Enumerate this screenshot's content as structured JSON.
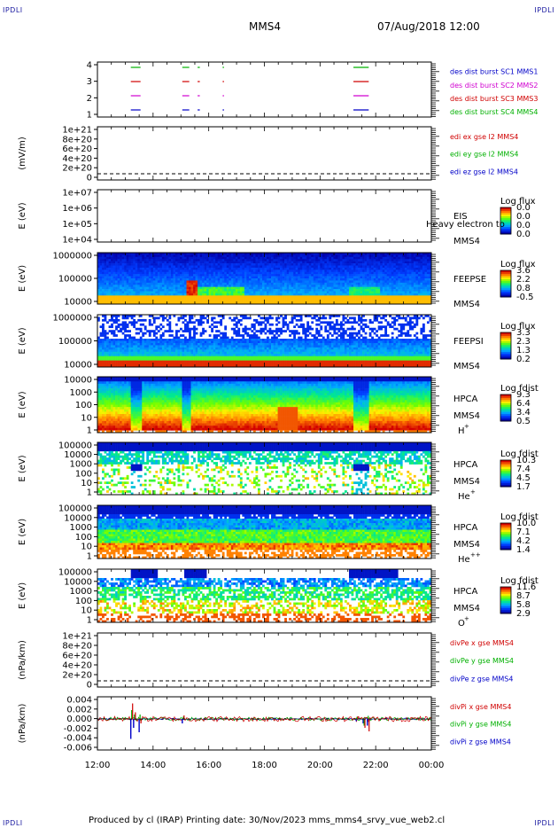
{
  "corner_text": "IPDLI",
  "header": {
    "spacecraft": "MMS4",
    "datetime": "07/Aug/2018 12:00"
  },
  "footer": {
    "text": "Produced by cl (IRAP)   Printing date: 30/Nov/2023   mms_mms4_srvy_vue_web2.cl"
  },
  "colors": {
    "blue": "#0000c8",
    "red": "#d00000",
    "green": "#00b000",
    "magenta": "#d000d0"
  },
  "chart_data": [
    {
      "type": "line",
      "panel": "burst",
      "yticks": [
        "4",
        "3",
        "2",
        "1"
      ],
      "legend": [
        {
          "text": "des dist burst SC1 MMS1",
          "color": "#0000c8"
        },
        {
          "text": "des dist burst SC2 MMS2",
          "color": "#d000d0"
        },
        {
          "text": "des dist burst SC3 MMS3",
          "color": "#d00000"
        },
        {
          "text": "des dist burst SC4 MMS4",
          "color": "#00b000"
        }
      ],
      "bursts": [
        {
          "level": 4,
          "color": "#00b000",
          "intervals": [
            [
              13.2,
              13.55
            ],
            [
              15.05,
              15.3
            ],
            [
              15.6,
              15.68
            ],
            [
              16.5,
              16.55
            ],
            [
              21.2,
              21.75
            ]
          ]
        },
        {
          "level": 3,
          "color": "#d00000",
          "intervals": [
            [
              13.2,
              13.55
            ],
            [
              15.05,
              15.3
            ],
            [
              15.6,
              15.68
            ],
            [
              16.5,
              16.55
            ],
            [
              21.2,
              21.75
            ]
          ]
        },
        {
          "level": 2,
          "color": "#d000d0",
          "intervals": [
            [
              13.2,
              13.55
            ],
            [
              15.05,
              15.3
            ],
            [
              15.6,
              15.68
            ],
            [
              16.5,
              16.55
            ],
            [
              21.2,
              21.75
            ]
          ]
        },
        {
          "level": 1,
          "color": "#0000c8",
          "intervals": [
            [
              13.2,
              13.55
            ],
            [
              15.05,
              15.3
            ],
            [
              15.6,
              15.68
            ],
            [
              16.5,
              16.55
            ],
            [
              21.2,
              21.75
            ]
          ]
        }
      ]
    },
    {
      "type": "line",
      "panel": "edi",
      "ylabel": "(mV/m)",
      "yticks": [
        "1e+21",
        "8e+20",
        "6e+20",
        "4e+20",
        "2e+20",
        "0"
      ],
      "legend": [
        {
          "text": "edi ex gse l2 MMS4",
          "color": "#d00000"
        },
        {
          "text": "edi ey gse l2 MMS4",
          "color": "#00b000"
        },
        {
          "text": "edi ez gse l2 MMS4",
          "color": "#0000c8"
        }
      ]
    },
    {
      "type": "heatmap",
      "panel": "eis",
      "ylabel": "E (eV)",
      "yticks": [
        "1e+07",
        "1e+06",
        "1e+05",
        "1e+04"
      ],
      "instrument": "EIS",
      "spacecraft": "MMS4",
      "overlay": "Heavy electron to",
      "colorbar": {
        "title": "Log flux",
        "ticks": [
          "0.0",
          "0.0",
          "0.0",
          "0.0"
        ]
      }
    },
    {
      "type": "heatmap",
      "panel": "feepse",
      "ylabel": "E (eV)",
      "yticks": [
        "1000000",
        "100000",
        "10000"
      ],
      "instrument": "FEEPSE",
      "spacecraft": "MMS4",
      "colorbar": {
        "title": "Log flux",
        "ticks": [
          "3.6",
          "2.2",
          "0.8",
          "-0.5"
        ]
      }
    },
    {
      "type": "heatmap",
      "panel": "feepsi",
      "ylabel": "E (eV)",
      "yticks": [
        "1000000",
        "100000",
        "10000"
      ],
      "instrument": "FEEPSI",
      "spacecraft": "MMS4",
      "colorbar": {
        "title": "Log flux",
        "ticks": [
          "3.3",
          "2.3",
          "1.3",
          "0.2"
        ]
      }
    },
    {
      "type": "heatmap",
      "panel": "hpca_h",
      "ylabel": "E (eV)",
      "yticks": [
        "10000",
        "1000",
        "100",
        "10",
        "1"
      ],
      "instrument": "HPCA",
      "spacecraft": "MMS4",
      "species": "H",
      "charge": "+",
      "colorbar": {
        "title": "Log fdist",
        "ticks": [
          "9.3",
          "6.4",
          "3.4",
          "0.5"
        ]
      }
    },
    {
      "type": "heatmap",
      "panel": "hpca_he",
      "ylabel": "E (eV)",
      "yticks": [
        "100000",
        "10000",
        "1000",
        "100",
        "10",
        "1"
      ],
      "instrument": "HPCA",
      "spacecraft": "MMS4",
      "species": "He",
      "charge": "+",
      "colorbar": {
        "title": "Log fdist",
        "ticks": [
          "10.3",
          "7.4",
          "4.5",
          "1.7"
        ]
      }
    },
    {
      "type": "heatmap",
      "panel": "hpca_he2",
      "ylabel": "E (eV)",
      "yticks": [
        "100000",
        "10000",
        "1000",
        "100",
        "10",
        "1"
      ],
      "instrument": "HPCA",
      "spacecraft": "MMS4",
      "species": "He",
      "charge": "++",
      "colorbar": {
        "title": "Log fdist",
        "ticks": [
          "10.0",
          "7.1",
          "4.2",
          "1.4"
        ]
      }
    },
    {
      "type": "heatmap",
      "panel": "hpca_o",
      "ylabel": "E (eV)",
      "yticks": [
        "100000",
        "10000",
        "1000",
        "100",
        "10",
        "1"
      ],
      "instrument": "HPCA",
      "spacecraft": "MMS4",
      "species": "O",
      "charge": "+",
      "colorbar": {
        "title": "Log fdist",
        "ticks": [
          "11.6",
          "8.7",
          "5.8",
          "2.9"
        ]
      }
    },
    {
      "type": "line",
      "panel": "divpe",
      "ylabel": "(nPa/km)",
      "yticks": [
        "1e+21",
        "8e+20",
        "6e+20",
        "4e+20",
        "2e+20",
        "0"
      ],
      "legend": [
        {
          "text": "divPe x gse MMS4",
          "color": "#d00000"
        },
        {
          "text": "divPe y gse MMS4",
          "color": "#00b000"
        },
        {
          "text": "divPe z gse MMS4",
          "color": "#0000c8"
        }
      ]
    },
    {
      "type": "line",
      "panel": "divpi",
      "ylabel": "(nPa/km)",
      "yticks": [
        "0.004",
        "0.002",
        "0.000",
        "-0.002",
        "-0.004",
        "-0.006"
      ],
      "ylim": [
        -0.007,
        0.005
      ],
      "legend": [
        {
          "text": "divPi x gse MMS4",
          "color": "#d00000"
        },
        {
          "text": "divPi y gse MMS4",
          "color": "#00b000"
        },
        {
          "text": "divPi z gse MMS4",
          "color": "#0000c8"
        }
      ],
      "spikes": [
        {
          "t": 13.2,
          "x": 0.0035,
          "y": 0.002,
          "z": -0.0045
        },
        {
          "t": 13.3,
          "x": 0.0015,
          "y": 0.001,
          "z": -0.002
        },
        {
          "t": 13.5,
          "x": -0.001,
          "y": 0.001,
          "z": -0.003
        },
        {
          "t": 15.05,
          "x": 0.0008,
          "y": 0.0005,
          "z": -0.001
        },
        {
          "t": 21.3,
          "x": 0.0006,
          "y": 0.0005,
          "z": -0.0005
        },
        {
          "t": 21.55,
          "x": -0.002,
          "y": -0.0015,
          "z": -0.001
        },
        {
          "t": 21.7,
          "x": -0.0028,
          "y": 0.0007,
          "z": -0.0015
        }
      ]
    }
  ],
  "time_axis": {
    "range": [
      12,
      24
    ],
    "ticks": [
      {
        "t": 12,
        "label": "12:00"
      },
      {
        "t": 14,
        "label": "14:00"
      },
      {
        "t": 16,
        "label": "16:00"
      },
      {
        "t": 18,
        "label": "18:00"
      },
      {
        "t": 20,
        "label": "20:00"
      },
      {
        "t": 22,
        "label": "22:00"
      },
      {
        "t": 24,
        "label": "00:00"
      }
    ]
  }
}
